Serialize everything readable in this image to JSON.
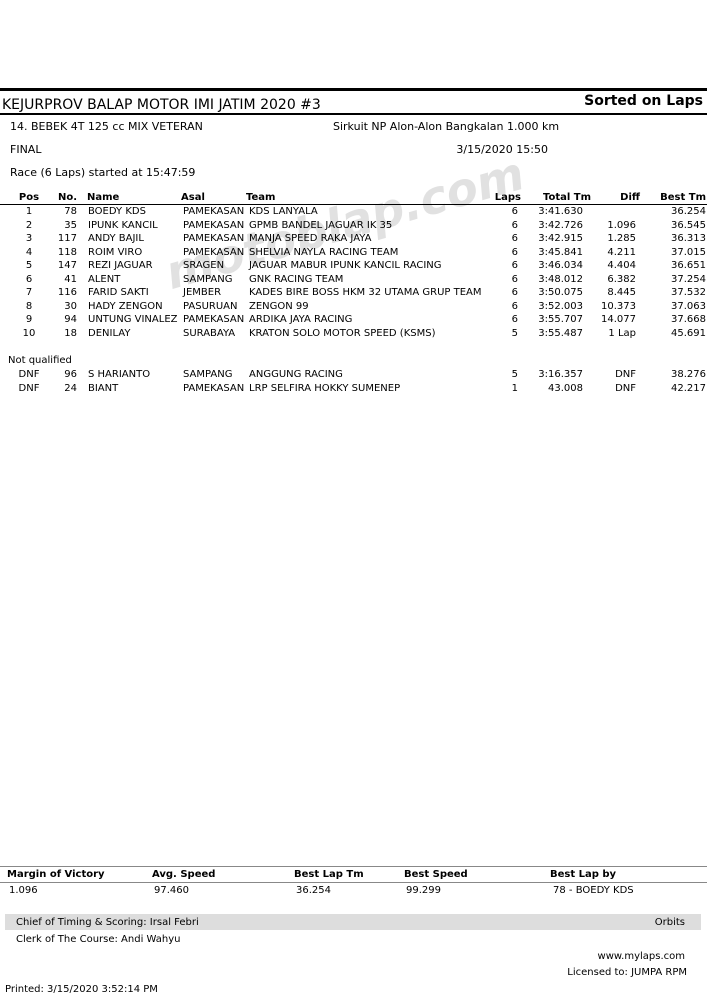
{
  "header": {
    "title": "KEJURPROV BALAP MOTOR IMI JATIM 2020 #3",
    "sort": "Sorted on Laps",
    "event": "14. BEBEK 4T 125 cc MIX VETERAN",
    "circuit": "Sirkuit NP Alon-Alon Bangkalan 1.000 km",
    "session": "FINAL",
    "datetime": "3/15/2020 15:50",
    "race": "Race (6 Laps) started at 15:47:59"
  },
  "watermark": "motoblap.com",
  "table": {
    "columns": [
      "Pos",
      "No.",
      "Name",
      "Asal",
      "Team",
      "Laps",
      "Total Tm",
      "Diff",
      "Best Tm"
    ],
    "rows": [
      [
        "1",
        "78",
        "BOEDY KDS",
        "PAMEKASAN",
        "KDS LANYALA",
        "6",
        "3:41.630",
        null,
        "36.254"
      ],
      [
        "2",
        "35",
        "IPUNK KANCIL",
        "PAMEKASAN",
        "GPMB BANDEL JAGUAR IK 35",
        "6",
        "3:42.726",
        "1.096",
        "36.545"
      ],
      [
        "3",
        "117",
        "ANDY BAJIL",
        "PAMEKASAN",
        "MANJA SPEED RAKA JAYA",
        "6",
        "3:42.915",
        "1.285",
        "36.313"
      ],
      [
        "4",
        "118",
        "ROIM VIRO",
        "PAMEKASAN",
        "SHELVIA NAYLA RACING TEAM",
        "6",
        "3:45.841",
        "4.211",
        "37.015"
      ],
      [
        "5",
        "147",
        "REZI JAGUAR",
        "SRAGEN",
        "JAGUAR MABUR IPUNK KANCIL RACING",
        "6",
        "3:46.034",
        "4.404",
        "36.651"
      ],
      [
        "6",
        "41",
        "ALENT",
        "SAMPANG",
        "GNK RACING TEAM",
        "6",
        "3:48.012",
        "6.382",
        "37.254"
      ],
      [
        "7",
        "116",
        "FARID SAKTI",
        "JEMBER",
        "KADES BIRE BOSS HKM 32 UTAMA GRUP TEAM",
        "6",
        "3:50.075",
        "8.445",
        "37.532"
      ],
      [
        "8",
        "30",
        "HADY ZENGON",
        "PASURUAN",
        "ZENGON 99",
        "6",
        "3:52.003",
        "10.373",
        "37.063"
      ],
      [
        "9",
        "94",
        "UNTUNG VINALEZ",
        "PAMEKASAN",
        "ARDIKA JAYA RACING",
        "6",
        "3:55.707",
        "14.077",
        "37.668"
      ],
      [
        "10",
        "18",
        "DENILAY",
        "SURABAYA",
        "KRATON SOLO MOTOR SPEED (KSMS)",
        "5",
        "3:55.487",
        "1 Lap",
        "45.691"
      ]
    ],
    "nq_label": "Not qualified",
    "nq_rows": [
      [
        "DNF",
        "96",
        "S HARIANTO",
        "SAMPANG",
        "ANGGUNG RACING",
        "5",
        "3:16.357",
        "DNF",
        "38.276"
      ],
      [
        "DNF",
        "24",
        "BIANT",
        "PAMEKASAN",
        "LRP SELFIRA HOKKY SUMENEP",
        "1",
        "43.008",
        "DNF",
        "42.217"
      ]
    ]
  },
  "summary": {
    "labels": [
      "Margin of Victory",
      "Avg. Speed",
      "Best Lap Tm",
      "Best Speed",
      "Best Lap by"
    ],
    "values": [
      "1.096",
      "97.460",
      "36.254",
      "99.299",
      "78 - BOEDY KDS"
    ]
  },
  "footer": {
    "chief": "Chief of Timing & Scoring: Irsal Febri",
    "software": "Orbits",
    "clerk": "Clerk of The Course: Andi Wahyu",
    "site": "www.mylaps.com",
    "license": "Licensed to:  JUMPA RPM",
    "printed": "Printed: 3/15/2020 3:52:14 PM"
  }
}
